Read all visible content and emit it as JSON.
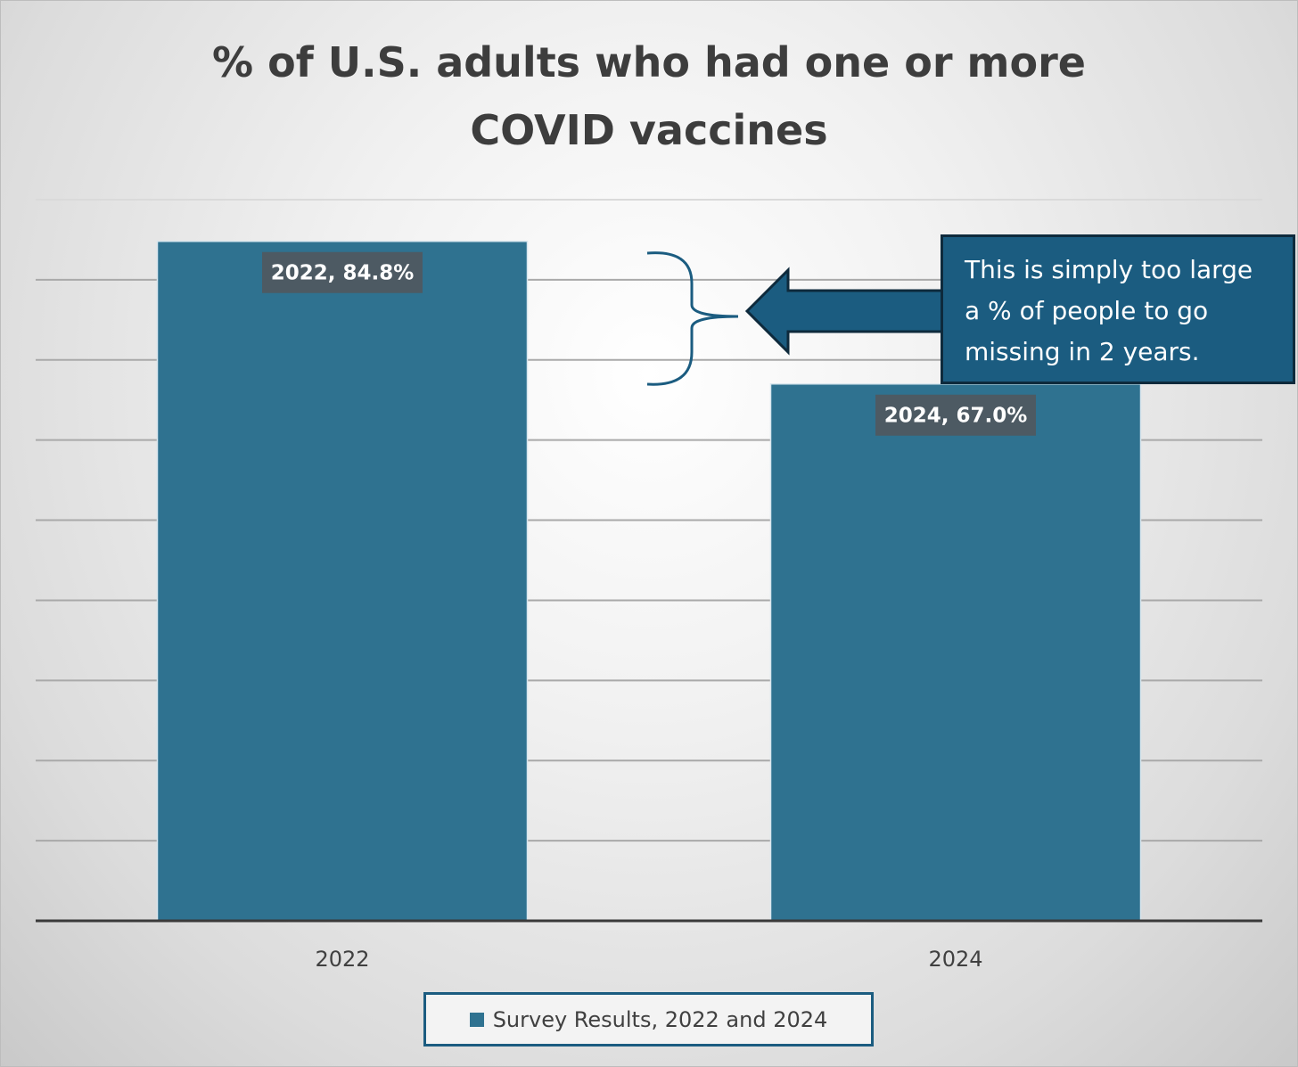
{
  "chart_data": {
    "type": "bar",
    "title": "% of U.S. adults who had one or more COVID vaccines",
    "title_lines": [
      "% of U.S. adults who had one or more",
      "COVID vaccines"
    ],
    "categories": [
      "2022",
      "2024"
    ],
    "series": [
      {
        "name": "Survey Results, 2022 and 2024",
        "values": [
          84.8,
          67.0
        ],
        "data_labels": [
          "2022, 84.8%",
          "2024, 67.0%"
        ],
        "color": "#2f7290"
      }
    ],
    "xlabel": "",
    "ylabel": "",
    "ylim": [
      0,
      90
    ],
    "grid": true,
    "legend": "bottom",
    "annotation": "This is simply too large a % of people to go missing in 2 years.",
    "annotation_lines": [
      "This is simply too large",
      "a % of people to go",
      "missing in 2 years."
    ],
    "colors": {
      "bar": "#2f7290",
      "callout": "#1b5c80",
      "arrow": "#1b5c80",
      "label_bg": "#4d5a63"
    }
  }
}
